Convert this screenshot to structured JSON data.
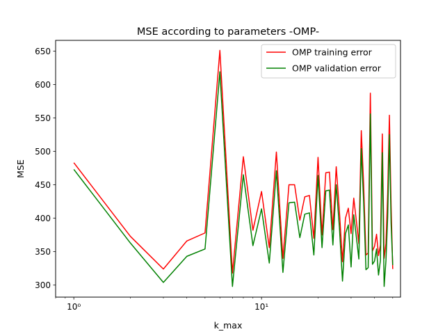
{
  "chart_data": {
    "type": "line",
    "title": "MSE according to parameters -OMP-",
    "xlabel": "k_max",
    "ylabel": "MSE",
    "xscale": "log",
    "xlim": [
      0.8,
      55
    ],
    "ylim": [
      282,
      666
    ],
    "x_major_ticks": [
      1,
      10
    ],
    "x_tick_labels": [
      "10⁰",
      "10¹"
    ],
    "y_ticks": [
      300,
      350,
      400,
      450,
      500,
      550,
      600,
      650
    ],
    "y_tick_labels": [
      "300",
      "350",
      "400",
      "450",
      "500",
      "550",
      "600",
      "650"
    ],
    "grid": false,
    "legend_position": "top-right",
    "x": [
      1,
      2,
      3,
      4,
      5,
      6,
      7,
      8,
      9,
      10,
      11,
      12,
      13,
      14,
      15,
      16,
      17,
      18,
      19,
      20,
      21,
      22,
      23,
      24,
      25,
      26,
      27,
      28,
      29,
      30,
      31,
      32,
      33,
      34,
      35,
      36,
      37,
      38,
      39,
      40,
      41,
      42,
      43,
      44,
      45,
      46,
      47,
      48,
      49,
      50
    ],
    "series": [
      {
        "name": "OMP training error",
        "color": "#ff0000",
        "values": [
          483,
          373,
          324,
          366,
          378,
          651,
          318,
          492,
          382,
          440,
          356,
          499,
          340,
          450,
          450,
          397,
          432,
          434,
          370,
          491,
          375,
          468,
          469,
          383,
          477,
          410,
          335,
          400,
          415,
          377,
          430,
          396,
          362,
          531,
          450,
          345,
          348,
          587,
          351,
          358,
          376,
          344,
          360,
          526,
          340,
          362,
          437,
          554,
          420,
          324
        ]
      },
      {
        "name": "OMP validation error",
        "color": "#008000",
        "values": [
          473,
          363,
          304,
          343,
          354,
          619,
          298,
          465,
          359,
          414,
          333,
          471,
          319,
          423,
          424,
          371,
          406,
          408,
          345,
          464,
          356,
          441,
          442,
          360,
          450,
          386,
          306,
          377,
          390,
          327,
          405,
          372,
          339,
          504,
          424,
          323,
          326,
          556,
          331,
          336,
          354,
          315,
          337,
          498,
          298,
          336,
          402,
          525,
          393,
          330
        ]
      }
    ]
  }
}
